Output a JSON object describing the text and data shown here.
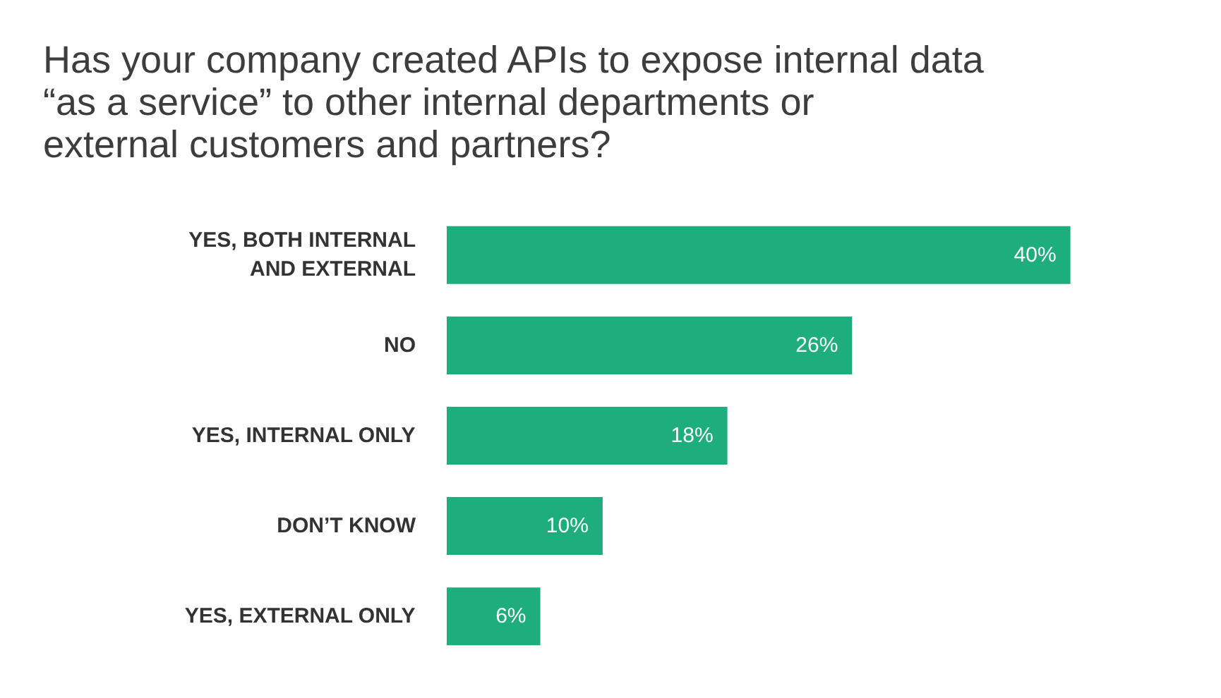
{
  "chart_data": {
    "type": "bar",
    "orientation": "horizontal",
    "title": "Has your company created APIs to expose internal data “as a service” to other internal departments or external customers and partners?",
    "categories": [
      "YES, BOTH INTERNAL AND EXTERNAL",
      "NO",
      "YES, INTERNAL ONLY",
      "DON’T KNOW",
      "YES, EXTERNAL ONLY"
    ],
    "values": [
      40,
      26,
      18,
      10,
      6
    ],
    "color": "#1eae7e",
    "data_labels": true,
    "value_labels": [
      "40%",
      "26%",
      "18%",
      "10%",
      "6%"
    ],
    "grid": false
  }
}
